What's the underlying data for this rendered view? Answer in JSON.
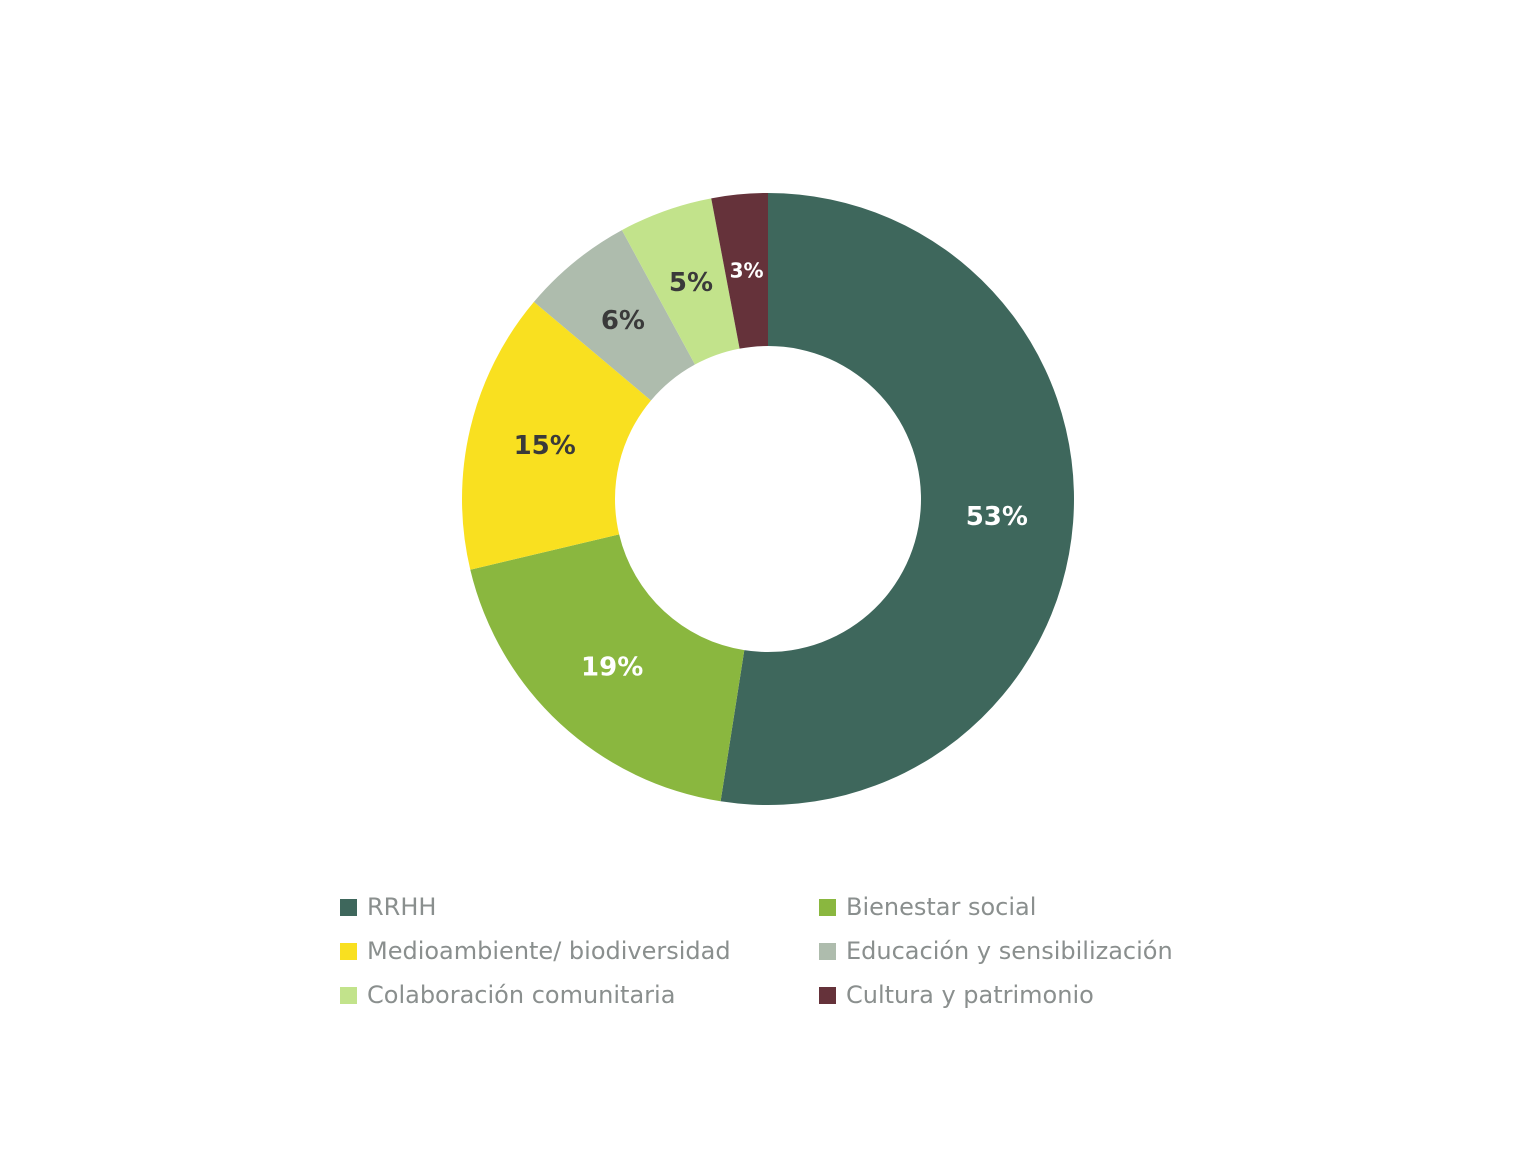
{
  "chart_data": {
    "type": "pie",
    "variant": "donut",
    "title": "",
    "categories": [
      "RRHH",
      "Bienestar social",
      "Medioambiente/ biodiversidad",
      "Educación y sensibilización",
      "Colaboración comunitaria",
      "Cultura y patrimonio"
    ],
    "values": [
      53,
      19,
      15,
      6,
      5,
      3
    ],
    "data_labels": [
      "53%",
      "19%",
      "15%",
      "6%",
      "5%",
      "3%"
    ],
    "colors": [
      "#3e675c",
      "#8ab73f",
      "#f9e020",
      "#aebcad",
      "#c2e38b",
      "#65323a"
    ],
    "label_colors": [
      "#ffffff",
      "#ffffff",
      "#3a3a3a",
      "#3a3a3a",
      "#3a3a3a",
      "#ffffff"
    ],
    "legend_position": "bottom",
    "legend_order": [
      0,
      1,
      2,
      3,
      4,
      5
    ]
  }
}
